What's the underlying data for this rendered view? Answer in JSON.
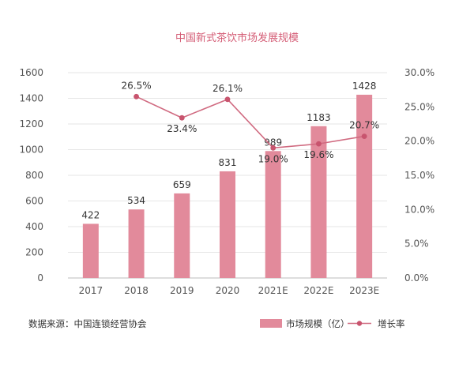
{
  "chart_data": {
    "type": "bar",
    "title": "中国新式茶饮市场发展规模",
    "categories": [
      "2017",
      "2018",
      "2019",
      "2020",
      "2021E",
      "2022E",
      "2023E"
    ],
    "series": [
      {
        "name": "市场规模（亿）",
        "type": "bar",
        "axis": "left",
        "values": [
          422,
          534,
          659,
          831,
          989,
          1183,
          1428
        ],
        "labels": [
          "422",
          "534",
          "659",
          "831",
          "989",
          "1183",
          "1428"
        ]
      },
      {
        "name": "增长率",
        "type": "line",
        "axis": "right",
        "values": [
          null,
          26.5,
          23.4,
          26.1,
          19.0,
          19.6,
          20.7
        ],
        "labels": [
          "",
          "26.5%",
          "23.4%",
          "26.1%",
          "19.0%",
          "19.6%",
          "20.7%"
        ]
      }
    ],
    "left_axis": {
      "ylim": [
        0,
        1600
      ],
      "ticks": [
        "0",
        "200",
        "400",
        "600",
        "800",
        "1000",
        "1200",
        "1400",
        "1600"
      ]
    },
    "right_axis": {
      "ylim": [
        0,
        30
      ],
      "ticks": [
        "0.0%",
        "5.0%",
        "10.0%",
        "15.0%",
        "20.0%",
        "25.0%",
        "30.0%"
      ]
    },
    "grid": true,
    "legend_position": "bottom-right",
    "colors": {
      "bar": "#e28a9b",
      "line": "#d06a80",
      "marker": "#c8546e",
      "title": "#d45c75"
    }
  },
  "source_note": "数据来源：中国连锁经营协会"
}
